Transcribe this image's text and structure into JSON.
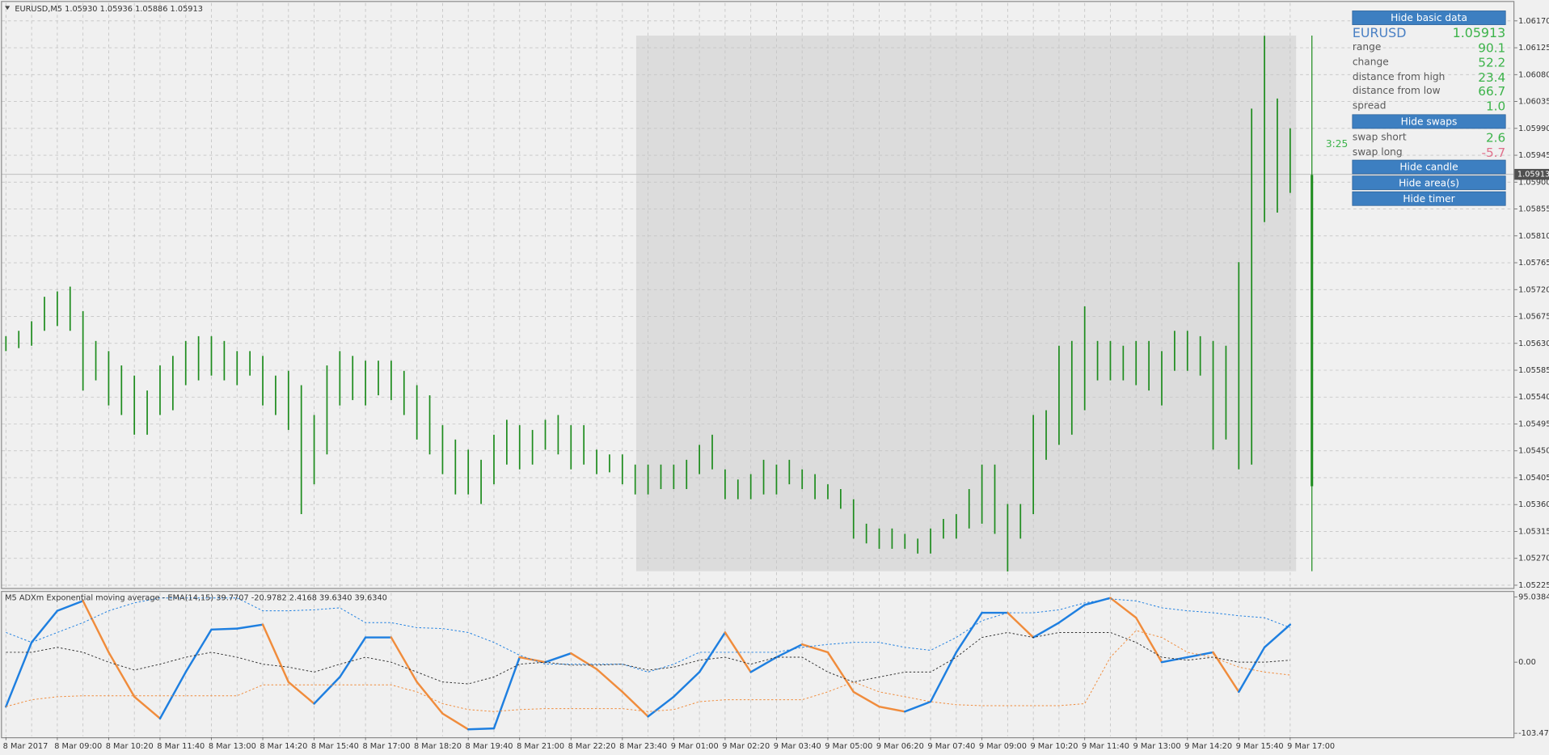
{
  "chart_data": [
    {
      "type": "hlbar",
      "title": "EURUSD,M5  1.05930 1.05936 1.05886 1.05913",
      "color": "#1e8c1e",
      "high": [
        1.05642,
        1.05651,
        1.05667,
        1.05708,
        1.05717,
        1.05725,
        1.05684,
        1.05634,
        1.05617,
        1.05593,
        1.05576,
        1.05551,
        1.05593,
        1.05609,
        1.05634,
        1.05642,
        1.05642,
        1.05634,
        1.05617,
        1.05617,
        1.05609,
        1.05576,
        1.05584,
        1.0556,
        1.0551,
        1.05593,
        1.05617,
        1.05609,
        1.05601,
        1.05601,
        1.05601,
        1.05584,
        1.0556,
        1.05543,
        1.05493,
        1.05469,
        1.05452,
        1.05435,
        1.05477,
        1.05502,
        1.05493,
        1.05485,
        1.05502,
        1.0551,
        1.05493,
        1.05493,
        1.05452,
        1.05444,
        1.05444,
        1.05427,
        1.05427,
        1.05427,
        1.05427,
        1.05435,
        1.0546,
        1.05477,
        1.05419,
        1.05402,
        1.05411,
        1.05435,
        1.05427,
        1.05435,
        1.05419,
        1.05411,
        1.05394,
        1.05386,
        1.05369,
        1.05328,
        1.0532,
        1.0532,
        1.05311,
        1.05303,
        1.0532,
        1.05336,
        1.05344,
        1.05386,
        1.05427,
        1.05427,
        1.05361,
        1.05361,
        1.0551,
        1.05518,
        1.05626,
        1.05634,
        1.05692,
        1.05634,
        1.05634,
        1.05626,
        1.05634,
        1.05634,
        1.05617,
        1.05651,
        1.05651,
        1.05642,
        1.05634,
        1.05626,
        1.05766,
        1.06023,
        1.06145,
        1.0604,
        1.0599
      ],
      "low": [
        1.05617,
        1.05622,
        1.05626,
        1.05651,
        1.05659,
        1.05651,
        1.05551,
        1.05568,
        1.05526,
        1.0551,
        1.05477,
        1.05477,
        1.0551,
        1.05518,
        1.0556,
        1.05568,
        1.05576,
        1.05568,
        1.0556,
        1.05576,
        1.05526,
        1.0551,
        1.05485,
        1.05344,
        1.05394,
        1.05444,
        1.05526,
        1.05535,
        1.05526,
        1.05543,
        1.05535,
        1.0551,
        1.05469,
        1.05444,
        1.05411,
        1.05377,
        1.05377,
        1.05361,
        1.05394,
        1.05427,
        1.05419,
        1.05427,
        1.05452,
        1.05444,
        1.05419,
        1.05427,
        1.05411,
        1.05414,
        1.05394,
        1.05377,
        1.05377,
        1.05386,
        1.05386,
        1.05386,
        1.05411,
        1.05419,
        1.05369,
        1.05369,
        1.05369,
        1.05377,
        1.05377,
        1.05394,
        1.05386,
        1.05369,
        1.05369,
        1.05353,
        1.05303,
        1.05295,
        1.05286,
        1.05286,
        1.05286,
        1.05278,
        1.05278,
        1.05303,
        1.05303,
        1.0532,
        1.05328,
        1.05311,
        1.05248,
        1.05303,
        1.05344,
        1.05435,
        1.0546,
        1.05477,
        1.05518,
        1.05568,
        1.05568,
        1.05568,
        1.0556,
        1.05551,
        1.05526,
        1.05584,
        1.05584,
        1.05576,
        1.05452,
        1.05469,
        1.05419,
        1.05427,
        1.05833,
        1.05849,
        1.05882
      ],
      "current_price": 1.05913,
      "ylim": [
        1.05222,
        1.062
      ],
      "yticks": [
        {
          "value": 1.0617,
          "label": "1.06170"
        },
        1.06125,
        {
          "value": 1.0608,
          "label": "1.06080"
        },
        1.06035,
        {
          "value": 1.0599,
          "label": "1.05990"
        },
        1.05945,
        {
          "value": 1.059,
          "label": "1.05900"
        },
        1.05855,
        {
          "value": 1.0581,
          "label": "1.05810"
        },
        1.05765,
        {
          "value": 1.0572,
          "label": "1.05720"
        },
        1.05675,
        {
          "value": 1.0563,
          "label": "1.05630"
        },
        1.05585,
        {
          "value": 1.0554,
          "label": "1.05540"
        },
        1.05495,
        {
          "value": 1.0545,
          "label": "1.05450"
        },
        1.05405,
        {
          "value": 1.0536,
          "label": "1.05360"
        },
        1.05315,
        {
          "value": 1.0527,
          "label": "1.05270"
        },
        1.05225
      ],
      "grid": true
    },
    {
      "type": "line",
      "title": "M5 ADXm Exponential moving average - EMA(14,15) 39.7707 -20.9782 2.4168 39.6340 39.6340",
      "categories": [
        "8 Mar 2017",
        null,
        "8 Mar 09:00",
        null,
        "8 Mar 10:20",
        null,
        "8 Mar 11:40",
        null,
        "8 Mar 13:00",
        null,
        "8 Mar 14:20",
        null,
        "8 Mar 15:40",
        null,
        "8 Mar 17:00",
        null,
        "8 Mar 18:20",
        null,
        "8 Mar 19:40",
        null,
        "8 Mar 21:00",
        null,
        "8 Mar 22:20",
        null,
        "8 Mar 23:40",
        null,
        "9 Mar 01:00",
        null,
        "9 Mar 02:20",
        null,
        "9 Mar 03:40",
        null,
        "9 Mar 05:00",
        null,
        "9 Mar 06:20",
        null,
        "9 Mar 07:40",
        null,
        "9 Mar 09:00",
        null,
        "9 Mar 10:20",
        null,
        "9 Mar 11:40",
        null,
        "9 Mar 13:00",
        null,
        "9 Mar 14:20",
        null,
        "9 Mar 15:40",
        null,
        "9 Mar 17:00"
      ],
      "series": [
        {
          "color": "#1e7fe0",
          "down_color": "#f08c3c",
          "style": "solid",
          "values": [
            -64.7,
            28.8,
            74.8,
            89.2,
            14.4,
            -50.3,
            -82.0,
            -14.4,
            47.5,
            48.9,
            54.7,
            -28.8,
            -60.4,
            -21.6,
            36.0,
            36.0,
            -28.8,
            -74.8,
            -97.8,
            -96.4,
            7.2,
            0,
            12.9,
            -10.1,
            -43.2,
            -79.1,
            -50.3,
            -14.4,
            43.2,
            -14.4,
            7.2,
            25.9,
            14.4,
            -43.2,
            -64.7,
            -71.9,
            -57.5,
            14.4,
            71.9,
            71.9,
            36.0,
            57.5,
            83.4,
            93.5,
            64.7,
            0,
            7.2,
            14.4,
            -43.2,
            21.6,
            54.7
          ]
        },
        {
          "color": "#1e7fe0",
          "style": "dotted",
          "values": [
            43.2,
            28.8,
            43.2,
            57.5,
            74.8,
            86.3,
            93.5,
            93.5,
            93.5,
            93.5,
            74.8,
            74.8,
            76.2,
            79.1,
            57.5,
            57.5,
            50.3,
            48.9,
            43.2,
            28.8,
            10.1,
            -2.9,
            -2.9,
            -2.9,
            -2.9,
            -14.4,
            -2.9,
            14.4,
            14.4,
            14.4,
            14.4,
            21.6,
            25.9,
            28.8,
            28.8,
            21.6,
            17.3,
            36.0,
            60.4,
            71.9,
            71.9,
            76.2,
            86.3,
            92.1,
            89.2,
            79.1,
            74.8,
            71.9,
            67.6,
            64.7,
            50.3
          ]
        },
        {
          "color": "#f08c3c",
          "style": "dotted",
          "values": [
            -64.7,
            -54.7,
            -50.3,
            -48.9,
            -48.9,
            -48.9,
            -48.9,
            -48.9,
            -48.9,
            -48.9,
            -33.1,
            -33.1,
            -33.1,
            -33.1,
            -33.1,
            -33.1,
            -43.2,
            -60.4,
            -69.0,
            -71.9,
            -69.0,
            -67.6,
            -67.6,
            -67.6,
            -67.6,
            -71.9,
            -69.0,
            -57.5,
            -54.7,
            -54.7,
            -54.7,
            -54.7,
            -43.2,
            -28.8,
            -43.2,
            -50.3,
            -57.5,
            -61.9,
            -63.3,
            -63.3,
            -63.3,
            -63.3,
            -60.4,
            7.2,
            46.0,
            36.0,
            14.4,
            7.2,
            -7.2,
            -14.4,
            -18.7
          ]
        },
        {
          "color": "#333333",
          "style": "dotted",
          "values": [
            14.4,
            14.4,
            21.6,
            14.4,
            0,
            -11.5,
            -2.9,
            7.2,
            14.4,
            7.2,
            -2.9,
            -7.2,
            -14.4,
            -2.9,
            7.2,
            0,
            -14.4,
            -28.8,
            -31.6,
            -21.6,
            -2.9,
            0,
            -4.3,
            -4.3,
            -2.9,
            -11.5,
            -7.2,
            2.9,
            7.2,
            -2.9,
            7.2,
            7.2,
            -14.4,
            -28.8,
            -21.6,
            -14.4,
            -14.4,
            7.2,
            36.0,
            43.2,
            36.0,
            43.2,
            43.2,
            43.2,
            28.8,
            7.2,
            2.9,
            7.2,
            0,
            0,
            2.9
          ]
        }
      ],
      "ylim": [
        -103.4725,
        95.0384
      ],
      "yticks": [
        95.0384,
        {
          "value": 0,
          "label": "0.00"
        },
        -103.4725
      ],
      "grid": false
    }
  ],
  "panel": {
    "buttons": [
      "Hide basic data",
      "Hide swaps",
      "Hide candle",
      "Hide area(s)",
      "Hide timer"
    ],
    "symbol": "EURUSD",
    "price": "1.05913",
    "rows": [
      {
        "label": "range",
        "value": "90.1"
      },
      {
        "label": "change",
        "value": "52.2"
      },
      {
        "label": "distance from high",
        "value": "23.4"
      },
      {
        "label": "distance from low",
        "value": "66.7"
      },
      {
        "label": "spread",
        "value": "1.0"
      }
    ],
    "swaps": [
      {
        "label": "swap short",
        "value": "2.6"
      },
      {
        "label": "swap long",
        "value": "-5.7"
      }
    ],
    "timer": "3:25"
  }
}
